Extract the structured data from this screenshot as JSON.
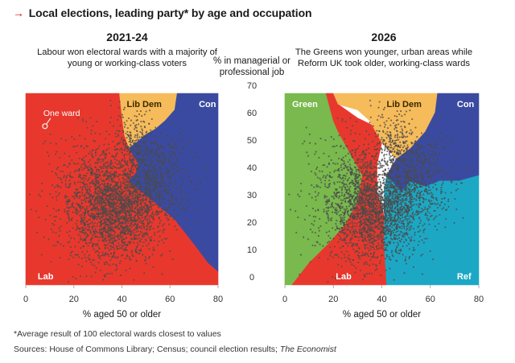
{
  "header": {
    "title": "Local elections, leading party* by age and occupation",
    "arrow": "→"
  },
  "middle_axis_label": "% in managerial or professional job",
  "footnotes": {
    "note": "*Average result of 100 electoral wards closest to values",
    "sources": "Sources: House of Commons Library; Census; council election results; The Economist"
  },
  "colors": {
    "Lab": "#e8382d",
    "Con": "#3b4aa1",
    "Lib Dem": "#f6bb5a",
    "Green": "#79b94d",
    "Ref": "#1ca8c4",
    "dots": "#4a4a4a"
  },
  "chart_data": [
    {
      "type": "scatter",
      "title": "2021-24",
      "subtitle": "Labour won electoral wards with a majority of young or working-class voters",
      "xlabel": "% aged 50 or older",
      "ylabel": "% in managerial or professional job",
      "xlim": [
        0,
        80
      ],
      "ylim": [
        0,
        70
      ],
      "x_ticks": [
        0,
        20,
        40,
        60,
        80
      ],
      "y_ticks": [
        0,
        10,
        20,
        30,
        40,
        50,
        60,
        70
      ],
      "annotation": "One ward",
      "annotation_point": [
        8,
        58
      ],
      "regions": [
        {
          "party": "Lab",
          "label": "Lab",
          "label_at": [
            5,
            2
          ]
        },
        {
          "party": "Lib Dem",
          "label": "Lib Dem",
          "label_at": [
            42,
            65
          ]
        },
        {
          "party": "Con",
          "label": "Con",
          "label_at": [
            72,
            65
          ]
        }
      ],
      "region_polygons": [
        {
          "party": "Lab",
          "points": [
            [
              0,
              0
            ],
            [
              0,
              70
            ],
            [
              39,
              70
            ],
            [
              40,
              62
            ],
            [
              41,
              55
            ],
            [
              43,
              50
            ],
            [
              47,
              44
            ],
            [
              46,
              41
            ],
            [
              43,
              38
            ],
            [
              47,
              35
            ],
            [
              54,
              30
            ],
            [
              62,
              24
            ],
            [
              70,
              15
            ],
            [
              76,
              8
            ],
            [
              80,
              5
            ],
            [
              80,
              0
            ]
          ]
        },
        {
          "party": "Lib Dem",
          "points": [
            [
              39,
              70
            ],
            [
              63,
              70
            ],
            [
              62,
              64
            ],
            [
              58,
              60
            ],
            [
              54,
              57
            ],
            [
              50,
              55
            ],
            [
              46,
              52
            ],
            [
              43,
              50
            ],
            [
              41,
              55
            ],
            [
              40,
              62
            ]
          ]
        },
        {
          "party": "Con",
          "points": [
            [
              63,
              70
            ],
            [
              80,
              70
            ],
            [
              80,
              5
            ],
            [
              76,
              8
            ],
            [
              70,
              15
            ],
            [
              62,
              24
            ],
            [
              54,
              30
            ],
            [
              47,
              35
            ],
            [
              43,
              38
            ],
            [
              46,
              41
            ],
            [
              47,
              44
            ],
            [
              43,
              50
            ],
            [
              46,
              52
            ],
            [
              50,
              55
            ],
            [
              54,
              57
            ],
            [
              58,
              60
            ],
            [
              62,
              64
            ]
          ]
        }
      ],
      "point_clusters": [
        {
          "cx": 38,
          "cy": 28,
          "sx": 9,
          "sy": 9,
          "n": 1900
        },
        {
          "cx": 30,
          "cy": 33,
          "sx": 12,
          "sy": 12,
          "n": 700
        },
        {
          "cx": 55,
          "cy": 40,
          "sx": 7,
          "sy": 8,
          "n": 550
        },
        {
          "cx": 45,
          "cy": 52,
          "sx": 4,
          "sy": 6,
          "n": 200
        }
      ]
    },
    {
      "type": "scatter",
      "title": "2026",
      "subtitle": "The Greens won younger, urban areas while Reform UK took older, working-class wards",
      "xlabel": "% aged 50 or older",
      "ylabel": "% in managerial or professional job",
      "xlim": [
        0,
        80
      ],
      "ylim": [
        0,
        70
      ],
      "x_ticks": [
        0,
        20,
        40,
        60,
        80
      ],
      "y_ticks": [
        0,
        10,
        20,
        30,
        40,
        50,
        60,
        70
      ],
      "regions": [
        {
          "party": "Green",
          "label": "Green",
          "label_at": [
            3,
            65
          ]
        },
        {
          "party": "Lab",
          "label": "Lab",
          "label_at": [
            21,
            2
          ]
        },
        {
          "party": "Lib Dem",
          "label": "Lib Dem",
          "label_at": [
            42,
            65
          ]
        },
        {
          "party": "Con",
          "label": "Con",
          "label_at": [
            71,
            65
          ]
        },
        {
          "party": "Ref",
          "label": "Ref",
          "label_at": [
            71,
            2
          ]
        }
      ],
      "region_polygons": [
        {
          "party": "Green",
          "points": [
            [
              0,
              0
            ],
            [
              3,
              0
            ],
            [
              10,
              8
            ],
            [
              18,
              15
            ],
            [
              25,
              22
            ],
            [
              30,
              30
            ],
            [
              32,
              40
            ],
            [
              22,
              56
            ],
            [
              20,
              60
            ],
            [
              17,
              70
            ],
            [
              0,
              70
            ]
          ]
        },
        {
          "party": "Lab",
          "points": [
            [
              3,
              0
            ],
            [
              42,
              0
            ],
            [
              41,
              15
            ],
            [
              41,
              25
            ],
            [
              38,
              34
            ],
            [
              38,
              44
            ],
            [
              40,
              52
            ],
            [
              37,
              58
            ],
            [
              30,
              61
            ],
            [
              22,
              66
            ],
            [
              20,
              70
            ],
            [
              17,
              70
            ],
            [
              20,
              60
            ],
            [
              22,
              56
            ],
            [
              32,
              40
            ],
            [
              30,
              30
            ],
            [
              25,
              22
            ],
            [
              18,
              15
            ],
            [
              10,
              8
            ]
          ]
        },
        {
          "party": "Lib Dem",
          "points": [
            [
              20,
              70
            ],
            [
              22,
              66
            ],
            [
              30,
              64
            ],
            [
              35,
              60
            ],
            [
              40,
              52
            ],
            [
              46,
              46
            ],
            [
              52,
              50
            ],
            [
              58,
              56
            ],
            [
              62,
              63
            ],
            [
              63,
              70
            ]
          ]
        },
        {
          "party": "Con",
          "points": [
            [
              63,
              70
            ],
            [
              80,
              70
            ],
            [
              80,
              40
            ],
            [
              72,
              38
            ],
            [
              64,
              38
            ],
            [
              58,
              36
            ],
            [
              52,
              38
            ],
            [
              48,
              34
            ],
            [
              42,
              40
            ],
            [
              46,
              46
            ],
            [
              52,
              50
            ],
            [
              58,
              56
            ],
            [
              62,
              63
            ]
          ]
        },
        {
          "party": "Ref",
          "points": [
            [
              42,
              0
            ],
            [
              80,
              0
            ],
            [
              80,
              40
            ],
            [
              72,
              38
            ],
            [
              64,
              38
            ],
            [
              58,
              36
            ],
            [
              52,
              38
            ],
            [
              48,
              34
            ],
            [
              42,
              40
            ],
            [
              41,
              35
            ],
            [
              41,
              15
            ]
          ]
        }
      ],
      "point_clusters": [
        {
          "cx": 38,
          "cy": 28,
          "sx": 9,
          "sy": 9,
          "n": 1900
        },
        {
          "cx": 30,
          "cy": 33,
          "sx": 12,
          "sy": 12,
          "n": 700
        },
        {
          "cx": 55,
          "cy": 40,
          "sx": 7,
          "sy": 8,
          "n": 550
        },
        {
          "cx": 45,
          "cy": 52,
          "sx": 4,
          "sy": 6,
          "n": 200
        }
      ]
    }
  ]
}
